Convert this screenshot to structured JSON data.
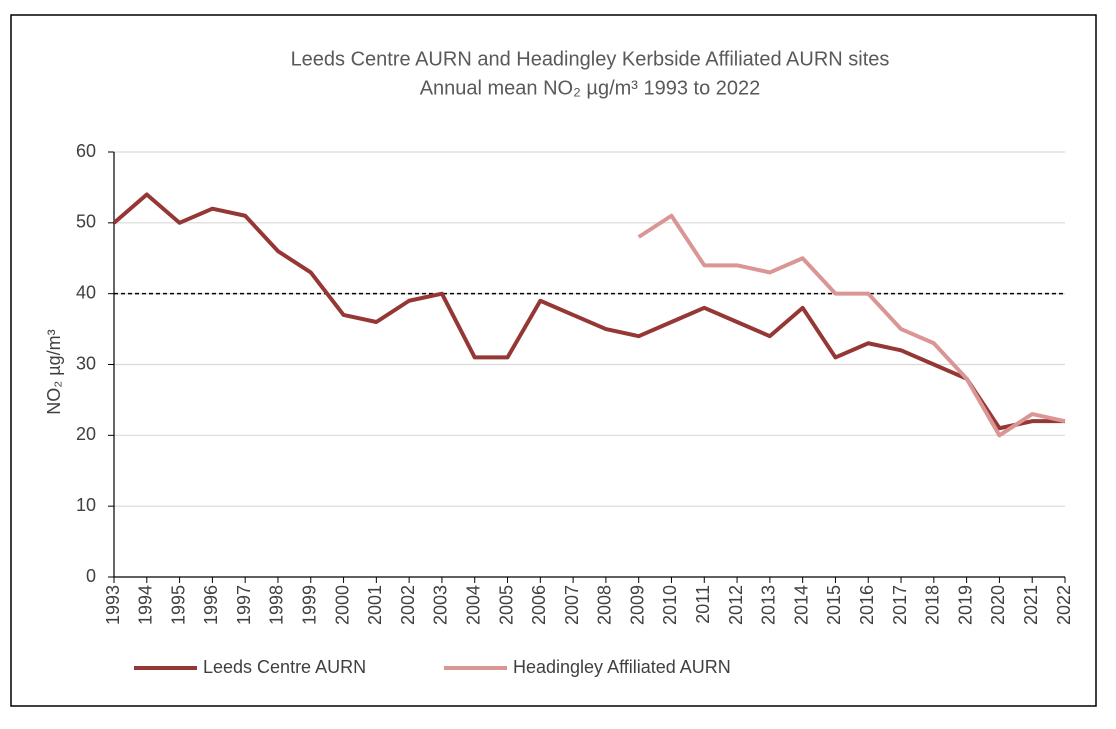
{
  "chart_data": {
    "type": "line",
    "title": "Leeds Centre AURN and Headingley Kerbside Affiliated AURN sites",
    "subtitle": "Annual mean  NO₂ µg/m³  1993 to 2022",
    "y_label": "NO₂ µg/m³",
    "categories": [
      "1993",
      "1994",
      "1995",
      "1996",
      "1997",
      "1998",
      "1999",
      "2000",
      "2001",
      "2002",
      "2003",
      "2004",
      "2005",
      "2006",
      "2007",
      "2008",
      "2009",
      "2010",
      "2011",
      "2012",
      "2013",
      "2014",
      "2015",
      "2016",
      "2017",
      "2018",
      "2019",
      "2020",
      "2021",
      "2022"
    ],
    "series": [
      {
        "name": "Leeds Centre AURN",
        "color": "#953735",
        "values": [
          50,
          54,
          50,
          52,
          51,
          46,
          43,
          37,
          36,
          39,
          40,
          31,
          31,
          39,
          37,
          35,
          34,
          36,
          38,
          36,
          34,
          38,
          31,
          33,
          32,
          30,
          28,
          21,
          22,
          22
        ]
      },
      {
        "name": "Headingley Affiliated AURN",
        "color": "#d99694",
        "values": [
          null,
          null,
          null,
          null,
          null,
          null,
          null,
          null,
          null,
          null,
          null,
          null,
          null,
          null,
          null,
          null,
          48,
          51,
          44,
          44,
          43,
          45,
          40,
          40,
          35,
          33,
          28,
          20,
          23,
          22
        ]
      }
    ],
    "ylim": [
      0,
      60
    ],
    "yticks": [
      0,
      10,
      20,
      30,
      40,
      50,
      60
    ],
    "reference_line": 40,
    "grid": true,
    "legend": "bottom"
  }
}
